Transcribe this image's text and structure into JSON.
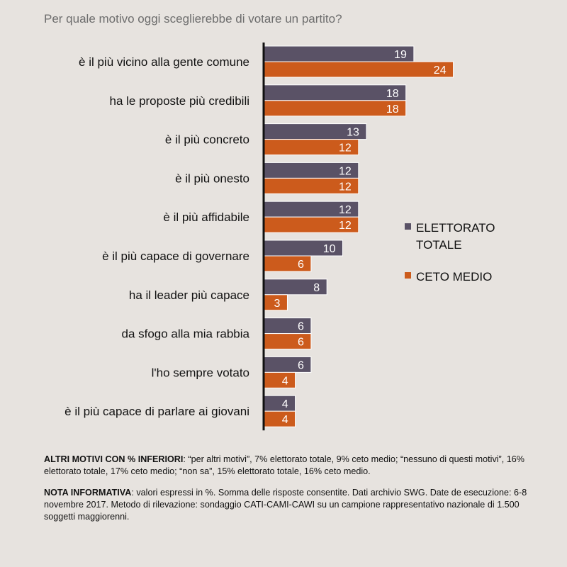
{
  "title": "Per quale motivo oggi sceglierebbe di votare un partito?",
  "colors": {
    "series_1": "#5a5266",
    "series_2": "#cc5b1c",
    "axis": "#111111"
  },
  "chart_data": {
    "type": "bar",
    "orientation": "horizontal",
    "categories": [
      "è il più vicino alla gente comune",
      "ha le proposte più credibili",
      "è il più concreto",
      "è il più onesto",
      "è il più affidabile",
      "è il più capace di governare",
      "ha il leader più capace",
      "da sfogo alla mia rabbia",
      "l'ho sempre votato",
      "è il più capace di parlare ai giovani"
    ],
    "series": [
      {
        "name": "ELETTORATO TOTALE",
        "values": [
          19,
          18,
          13,
          12,
          12,
          10,
          8,
          6,
          6,
          4
        ]
      },
      {
        "name": "CETO MEDIO",
        "values": [
          24,
          18,
          12,
          12,
          12,
          6,
          3,
          6,
          4,
          4
        ]
      }
    ],
    "legend_position": "right",
    "grid": false
  },
  "legend": {
    "series_1_lines": [
      "ELETTORATO",
      "TOTALE"
    ],
    "series_2_lines": [
      "CETO MEDIO"
    ]
  },
  "notes": {
    "altri_label": "ALTRI MOTIVI CON % INFERIORI",
    "altri_text": ": “per altri motivi”, 7% elettorato totale, 9% ceto medio; “nessuno di questi motivi”, 16% elettorato totale, 17% ceto medio; “non sa”, 15% elettorato totale, 16% ceto medio.",
    "nota_label": "NOTA INFORMATIVA",
    "nota_text": ": valori espressi in %. Somma delle risposte consentite. Dati archivio SWG. Date de esecuzione: 6-8 novembre 2017. Metodo di rilevazione: sondaggio CATI-CAMI-CAWI su un campione rappresentativo nazionale di 1.500 soggetti maggiorenni."
  }
}
